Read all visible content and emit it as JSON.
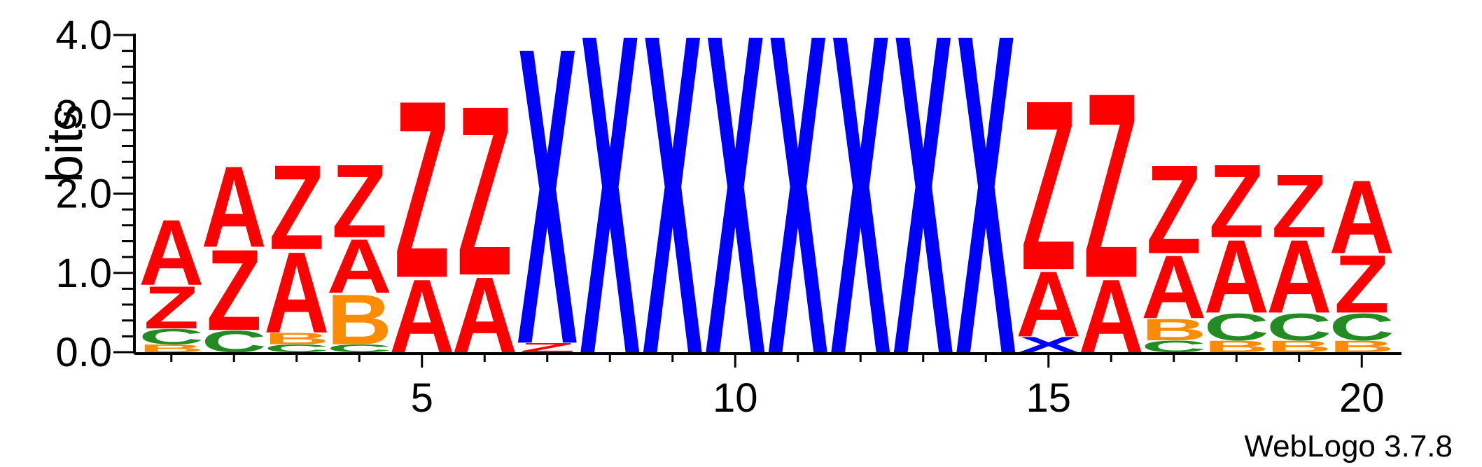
{
  "chart_data": {
    "type": "sequence-logo",
    "ylabel": "bits",
    "ylim": [
      0,
      4.0
    ],
    "y_ticks": [
      "0.0",
      "1.0",
      "2.0",
      "3.0",
      "4.0"
    ],
    "x_ticks": [
      5,
      10,
      15,
      20
    ],
    "x_tick_labels": [
      "5",
      "10",
      "15",
      "20"
    ],
    "positions": 20,
    "credit": "WebLogo 3.7.8",
    "colors": {
      "A": "#ff0000",
      "Z": "#ff0000",
      "X": "#0000ff",
      "B": "#ff8c00",
      "C": "#228b22"
    },
    "columns": [
      {
        "pos": 1,
        "stack": [
          [
            "B",
            0.1
          ],
          [
            "C",
            0.2
          ],
          [
            "Z",
            0.55
          ],
          [
            "A",
            0.85
          ]
        ]
      },
      {
        "pos": 2,
        "stack": [
          [
            "C",
            0.28
          ],
          [
            "Z",
            1.05
          ],
          [
            "A",
            1.05
          ]
        ]
      },
      {
        "pos": 3,
        "stack": [
          [
            "C",
            0.1
          ],
          [
            "B",
            0.15
          ],
          [
            "A",
            1.05
          ],
          [
            "Z",
            1.1
          ]
        ]
      },
      {
        "pos": 4,
        "stack": [
          [
            "C",
            0.1
          ],
          [
            "B",
            0.65
          ],
          [
            "A",
            0.7
          ],
          [
            "Z",
            0.95
          ]
        ]
      },
      {
        "pos": 5,
        "stack": [
          [
            "A",
            0.95
          ],
          [
            "Z",
            2.3
          ]
        ]
      },
      {
        "pos": 6,
        "stack": [
          [
            "A",
            0.98
          ],
          [
            "Z",
            2.2
          ]
        ]
      },
      {
        "pos": 7,
        "stack": [
          [
            "Z",
            0.12
          ],
          [
            "X",
            3.85
          ]
        ]
      },
      {
        "pos": 8,
        "stack": [
          [
            "X",
            4.15
          ]
        ]
      },
      {
        "pos": 9,
        "stack": [
          [
            "X",
            4.15
          ]
        ]
      },
      {
        "pos": 10,
        "stack": [
          [
            "X",
            4.15
          ]
        ]
      },
      {
        "pos": 11,
        "stack": [
          [
            "X",
            4.15
          ]
        ]
      },
      {
        "pos": 12,
        "stack": [
          [
            "X",
            4.15
          ]
        ]
      },
      {
        "pos": 13,
        "stack": [
          [
            "X",
            4.15
          ]
        ]
      },
      {
        "pos": 14,
        "stack": [
          [
            "X",
            4.15
          ]
        ]
      },
      {
        "pos": 15,
        "stack": [
          [
            "X",
            0.2
          ],
          [
            "A",
            0.85
          ],
          [
            "Z",
            2.2
          ]
        ]
      },
      {
        "pos": 16,
        "stack": [
          [
            "A",
            0.95
          ],
          [
            "Z",
            2.4
          ]
        ]
      },
      {
        "pos": 17,
        "stack": [
          [
            "C",
            0.15
          ],
          [
            "B",
            0.28
          ],
          [
            "A",
            0.82
          ],
          [
            "Z",
            1.15
          ]
        ]
      },
      {
        "pos": 18,
        "stack": [
          [
            "B",
            0.15
          ],
          [
            "C",
            0.35
          ],
          [
            "A",
            0.95
          ],
          [
            "Z",
            0.95
          ]
        ]
      },
      {
        "pos": 19,
        "stack": [
          [
            "B",
            0.15
          ],
          [
            "C",
            0.35
          ],
          [
            "A",
            0.95
          ],
          [
            "Z",
            0.82
          ]
        ]
      },
      {
        "pos": 20,
        "stack": [
          [
            "B",
            0.15
          ],
          [
            "C",
            0.35
          ],
          [
            "Z",
            0.75
          ],
          [
            "A",
            0.95
          ]
        ]
      }
    ]
  }
}
